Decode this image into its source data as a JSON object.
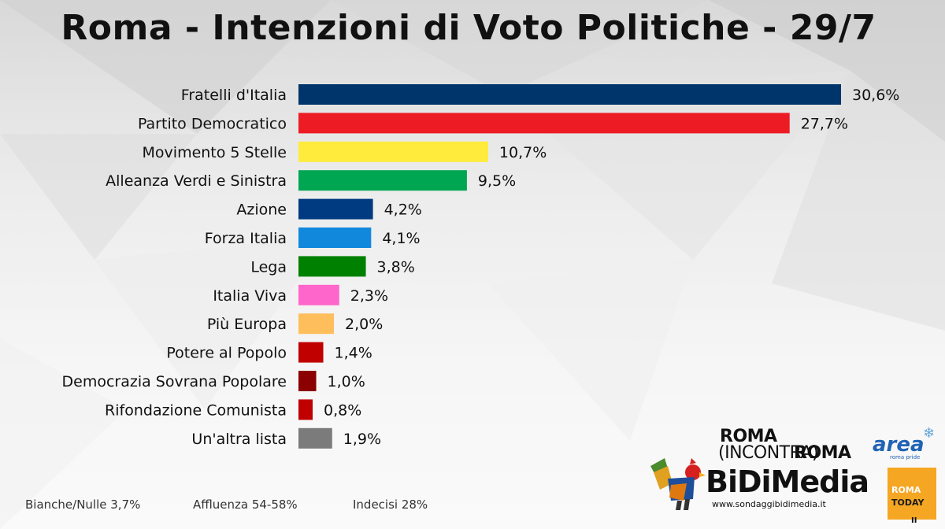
{
  "chart_data": {
    "type": "bar",
    "orientation": "horizontal",
    "title": "Roma - Intenzioni di Voto Politiche  - 29/7",
    "categories": [
      "Fratelli d'Italia",
      "Partito Democratico",
      "Movimento 5 Stelle",
      "Alleanza Verdi e Sinistra",
      "Azione",
      "Forza Italia",
      "Lega",
      "Italia Viva",
      "Più Europa",
      "Potere al Popolo",
      "Democrazia Sovrana Popolare",
      "Rifondazione Comunista",
      "Un'altra lista"
    ],
    "values": [
      30.6,
      27.7,
      10.7,
      9.5,
      4.2,
      4.1,
      3.8,
      2.3,
      2.0,
      1.4,
      1.0,
      0.8,
      1.9
    ],
    "value_labels": [
      "30,6%",
      "27,7%",
      "10,7%",
      "9,5%",
      "4,2%",
      "4,1%",
      "3,8%",
      "2,3%",
      "2,0%",
      "1,4%",
      "1,0%",
      "0,8%",
      "1,9%"
    ],
    "colors": [
      "#00356b",
      "#ed1c24",
      "#ffeb3b",
      "#00a651",
      "#003a80",
      "#1288dd",
      "#008000",
      "#ff66cc",
      "#ffbe5c",
      "#c00000",
      "#8b0000",
      "#c00000",
      "#7b7b7b"
    ],
    "xlabel": "",
    "ylabel": "",
    "grid": false,
    "legend": "none"
  },
  "footer": {
    "bianche": "Bianche/Nulle 3,7%",
    "affluenza": "Affluenza 54-58%",
    "indecisi": "Indecisi 28%"
  },
  "logos": {
    "rir_top": "ROMA",
    "rir_mid": "(INCONTRA)",
    "rir_end": "ROMA",
    "area_word": "area",
    "area_sub": "roma pride",
    "bidimedia_word": "BiDiMedia",
    "bidimedia_url": "www.sondaggibidimedia.it",
    "today_roma": "ROMA",
    "today_today": "TODAY",
    "today_ii": "II"
  }
}
